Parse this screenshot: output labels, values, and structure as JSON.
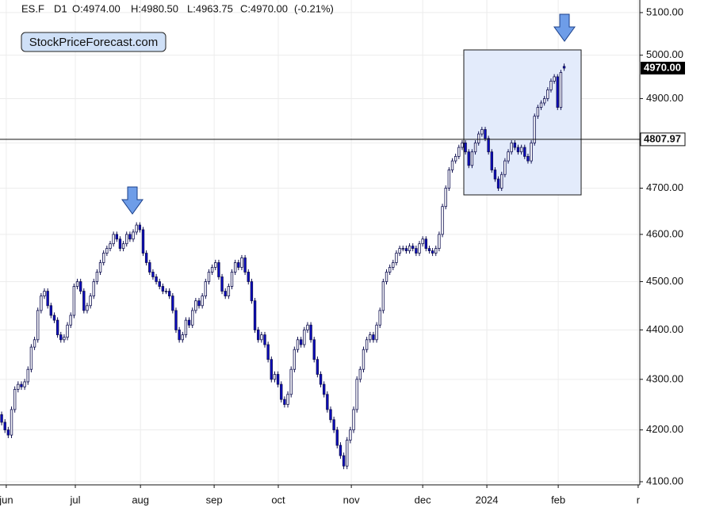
{
  "chart_data": {
    "type": "candlestick",
    "header": {
      "symbol": "ES.F",
      "timeframe": "D1",
      "open": "O:4974.00",
      "high": "H:4980.50",
      "low": "L:4963.75",
      "close": "C:4970.00",
      "change": "(-0.21%)"
    },
    "watermark": "StockPriceForecast.com",
    "log_scale": true,
    "grid": true,
    "up_color": "#ffffff",
    "down_color": "#0b0bc4",
    "outline_color": "#101050",
    "xlim": [
      -0.5,
      194
    ],
    "ylim": [
      4094,
      5130
    ],
    "yticks": [
      {
        "value": 4100,
        "label": "4100.00"
      },
      {
        "value": 4200,
        "label": "4200.00"
      },
      {
        "value": 4300,
        "label": "4300.00"
      },
      {
        "value": 4400,
        "label": "4400.00"
      },
      {
        "value": 4500,
        "label": "4500.00"
      },
      {
        "value": 4600,
        "label": "4600.00"
      },
      {
        "value": 4700,
        "label": "4700.00"
      },
      {
        "value": 4800,
        "label": "4800.00"
      },
      {
        "value": 4900,
        "label": "4900.00"
      },
      {
        "value": 5000,
        "label": "5000.00"
      },
      {
        "value": 5100,
        "label": "5100.00"
      }
    ],
    "xticks": [
      {
        "value": 1.4,
        "label": "jun"
      },
      {
        "value": 22.4,
        "label": "jul"
      },
      {
        "value": 42.2,
        "label": "aug"
      },
      {
        "value": 64.6,
        "label": "sep"
      },
      {
        "value": 84.1,
        "label": "oct"
      },
      {
        "value": 106.3,
        "label": "nov"
      },
      {
        "value": 128,
        "label": "dec"
      },
      {
        "value": 147.5,
        "label": "2024"
      },
      {
        "value": 169.2,
        "label": "feb"
      },
      {
        "value": 193.5,
        "label": "r"
      }
    ],
    "hline": {
      "value": 4807.97,
      "label": "4807.97"
    },
    "last_price": {
      "value": 4970,
      "label": "4970.00"
    },
    "open": [
      4230,
      4215,
      4200,
      4190,
      4240,
      4280,
      4290,
      4285,
      4295,
      4320,
      4365,
      4380,
      4440,
      4470,
      4480,
      4450,
      4430,
      4420,
      4390,
      4380,
      4385,
      4410,
      4430,
      4490,
      4500,
      4480,
      4440,
      4450,
      4470,
      4500,
      4520,
      4540,
      4560,
      4570,
      4580,
      4600,
      4590,
      4570,
      4580,
      4600,
      4590,
      4605,
      4620,
      4610,
      4560,
      4540,
      4520,
      4510,
      4500,
      4490,
      4480,
      4480,
      4470,
      4440,
      4400,
      4380,
      4390,
      4420,
      4410,
      4440,
      4460,
      4450,
      4470,
      4500,
      4520,
      4530,
      4540,
      4510,
      4480,
      4470,
      4490,
      4520,
      4540,
      4530,
      4550,
      4520,
      4500,
      4460,
      4400,
      4380,
      4390,
      4370,
      4340,
      4300,
      4310,
      4290,
      4260,
      4250,
      4270,
      4320,
      4360,
      4380,
      4370,
      4400,
      4410,
      4380,
      4340,
      4310,
      4290,
      4270,
      4240,
      4220,
      4200,
      4170,
      4150,
      4130,
      4180,
      4200,
      4240,
      4300,
      4320,
      4360,
      4380,
      4390,
      4380,
      4410,
      4440,
      4500,
      4520,
      4530,
      4540,
      4560,
      4570,
      4570,
      4565,
      4575,
      4570,
      4560,
      4580,
      4590,
      4570,
      4565,
      4560,
      4570,
      4600,
      4660,
      4700,
      4740,
      4760,
      4770,
      4790,
      4800,
      4780,
      4750,
      4780,
      4800,
      4820,
      4830,
      4810,
      4780,
      4740,
      4720,
      4700,
      4730,
      4760,
      4780,
      4800,
      4790,
      4780,
      4790,
      4770,
      4760,
      4800,
      4860,
      4880,
      4890,
      4900,
      4920,
      4940,
      4950,
      4880,
      4974
    ],
    "high": [
      4236,
      4221,
      4206,
      4246,
      4286,
      4296,
      4296,
      4301,
      4326,
      4371,
      4386,
      4446,
      4476,
      4486,
      4486,
      4456,
      4436,
      4426,
      4396,
      4391,
      4416,
      4436,
      4496,
      4506,
      4506,
      4486,
      4456,
      4476,
      4506,
      4526,
      4546,
      4566,
      4576,
      4586,
      4606,
      4606,
      4596,
      4586,
      4606,
      4606,
      4611,
      4626,
      4626,
      4616,
      4566,
      4546,
      4526,
      4516,
      4506,
      4496,
      4486,
      4486,
      4476,
      4446,
      4406,
      4396,
      4426,
      4426,
      4446,
      4466,
      4466,
      4476,
      4506,
      4526,
      4536,
      4546,
      4546,
      4516,
      4486,
      4496,
      4526,
      4546,
      4546,
      4556,
      4556,
      4526,
      4506,
      4466,
      4406,
      4396,
      4396,
      4376,
      4346,
      4316,
      4316,
      4296,
      4266,
      4276,
      4326,
      4366,
      4386,
      4386,
      4406,
      4416,
      4416,
      4386,
      4346,
      4316,
      4296,
      4276,
      4246,
      4226,
      4206,
      4176,
      4156,
      4186,
      4206,
      4246,
      4306,
      4326,
      4366,
      4386,
      4396,
      4396,
      4416,
      4446,
      4506,
      4526,
      4536,
      4546,
      4566,
      4576,
      4576,
      4576,
      4581,
      4581,
      4576,
      4586,
      4596,
      4596,
      4576,
      4571,
      4576,
      4606,
      4666,
      4706,
      4746,
      4766,
      4776,
      4796,
      4806,
      4806,
      4786,
      4786,
      4806,
      4826,
      4836,
      4836,
      4816,
      4786,
      4746,
      4726,
      4736,
      4766,
      4786,
      4806,
      4806,
      4796,
      4796,
      4796,
      4776,
      4806,
      4866,
      4886,
      4896,
      4906,
      4926,
      4946,
      4956,
      4956,
      4966,
      4980.5
    ],
    "low": [
      4209,
      4194,
      4184,
      4184,
      4234,
      4274,
      4279,
      4279,
      4289,
      4314,
      4359,
      4374,
      4434,
      4464,
      4444,
      4424,
      4414,
      4384,
      4374,
      4374,
      4379,
      4404,
      4424,
      4484,
      4474,
      4434,
      4434,
      4444,
      4464,
      4494,
      4514,
      4534,
      4554,
      4564,
      4574,
      4584,
      4564,
      4564,
      4574,
      4584,
      4584,
      4599,
      4604,
      4554,
      4534,
      4514,
      4504,
      4494,
      4484,
      4474,
      4474,
      4464,
      4434,
      4394,
      4374,
      4374,
      4384,
      4404,
      4404,
      4434,
      4444,
      4444,
      4464,
      4494,
      4514,
      4524,
      4504,
      4474,
      4464,
      4464,
      4484,
      4514,
      4524,
      4524,
      4514,
      4494,
      4454,
      4394,
      4374,
      4374,
      4364,
      4334,
      4294,
      4294,
      4284,
      4254,
      4244,
      4244,
      4264,
      4314,
      4354,
      4364,
      4364,
      4394,
      4374,
      4334,
      4304,
      4284,
      4264,
      4234,
      4214,
      4194,
      4164,
      4144,
      4124,
      4124,
      4174,
      4194,
      4234,
      4294,
      4314,
      4354,
      4374,
      4374,
      4374,
      4404,
      4434,
      4494,
      4514,
      4524,
      4534,
      4554,
      4564,
      4559,
      4559,
      4564,
      4554,
      4554,
      4574,
      4564,
      4559,
      4554,
      4554,
      4564,
      4594,
      4654,
      4694,
      4734,
      4754,
      4764,
      4784,
      4774,
      4744,
      4744,
      4774,
      4794,
      4814,
      4804,
      4774,
      4734,
      4714,
      4694,
      4694,
      4724,
      4754,
      4774,
      4784,
      4774,
      4774,
      4764,
      4754,
      4754,
      4794,
      4854,
      4874,
      4884,
      4894,
      4914,
      4934,
      4874,
      4874,
      4963.75
    ],
    "close": [
      4215,
      4200,
      4190,
      4240,
      4280,
      4290,
      4285,
      4295,
      4320,
      4365,
      4380,
      4440,
      4470,
      4480,
      4450,
      4430,
      4420,
      4390,
      4380,
      4385,
      4410,
      4430,
      4490,
      4500,
      4480,
      4440,
      4450,
      4470,
      4500,
      4520,
      4540,
      4560,
      4570,
      4580,
      4600,
      4590,
      4570,
      4580,
      4600,
      4590,
      4605,
      4620,
      4610,
      4560,
      4540,
      4520,
      4510,
      4500,
      4490,
      4480,
      4480,
      4470,
      4440,
      4400,
      4380,
      4390,
      4420,
      4410,
      4440,
      4460,
      4450,
      4470,
      4500,
      4520,
      4530,
      4540,
      4510,
      4480,
      4470,
      4490,
      4520,
      4540,
      4530,
      4550,
      4520,
      4500,
      4460,
      4400,
      4380,
      4390,
      4370,
      4340,
      4300,
      4310,
      4290,
      4260,
      4250,
      4270,
      4320,
      4360,
      4380,
      4370,
      4400,
      4410,
      4380,
      4340,
      4310,
      4290,
      4270,
      4240,
      4220,
      4200,
      4170,
      4150,
      4130,
      4180,
      4200,
      4240,
      4300,
      4320,
      4360,
      4380,
      4390,
      4380,
      4410,
      4440,
      4500,
      4520,
      4530,
      4540,
      4560,
      4570,
      4570,
      4565,
      4575,
      4570,
      4560,
      4580,
      4590,
      4570,
      4565,
      4560,
      4570,
      4600,
      4660,
      4700,
      4740,
      4760,
      4770,
      4790,
      4800,
      4780,
      4750,
      4780,
      4800,
      4820,
      4830,
      4810,
      4780,
      4740,
      4720,
      4700,
      4730,
      4760,
      4780,
      4800,
      4790,
      4780,
      4790,
      4770,
      4760,
      4800,
      4860,
      4880,
      4890,
      4900,
      4920,
      4940,
      4950,
      4880,
      4960,
      4970
    ]
  }
}
